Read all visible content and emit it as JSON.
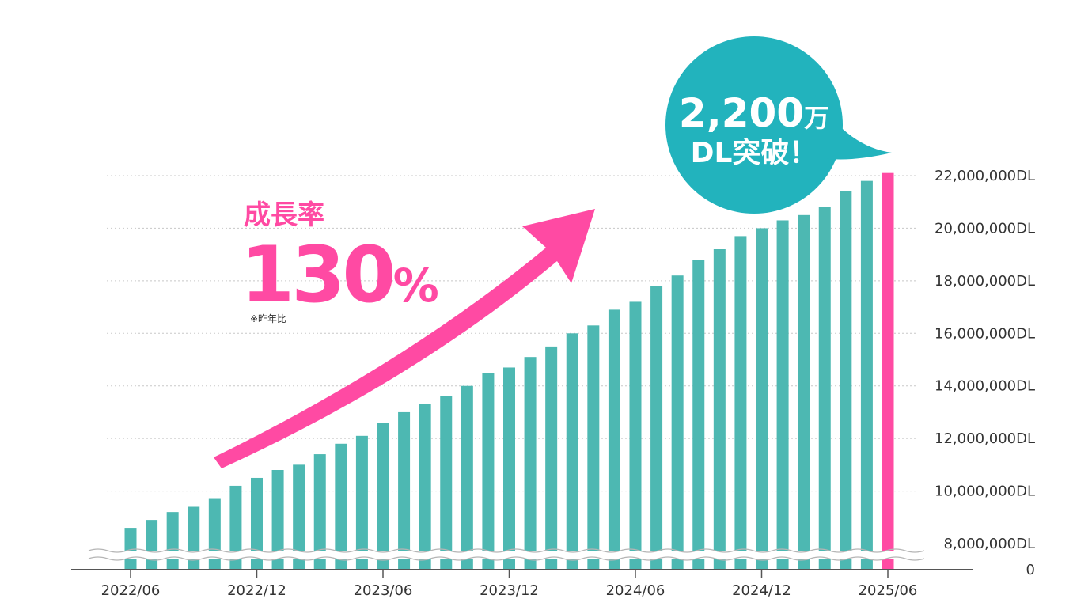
{
  "colors": {
    "bar": "#4db8b2",
    "highlight_bar": "#ff4aa3",
    "accent": "#ff4aa3",
    "bubble": "#22b3bd",
    "grid": "#c8c8c8",
    "axis": "#555555"
  },
  "growth": {
    "label": "成長率",
    "value": "130",
    "unit": "%",
    "note": "※昨年比"
  },
  "bubble": {
    "line1_number": "2,200",
    "line1_unit": "万",
    "line2": "DL突破！"
  },
  "chart_data": {
    "type": "bar",
    "x_tick_labels": [
      "2022/06",
      "2022/12",
      "2023/06",
      "2023/12",
      "2024/06",
      "2024/12",
      "2025/06"
    ],
    "y_tick_labels": [
      "0",
      "8,000,000DL",
      "10,000,000DL",
      "12,000,000DL",
      "14,000,000DL",
      "16,000,000DL",
      "18,000,000DL",
      "20,000,000DL",
      "22,000,000DL"
    ],
    "ylim": [
      8000000,
      22000000
    ],
    "axis_break": true,
    "grid": true,
    "series": [
      {
        "values": [
          8600000,
          8900000,
          9200000,
          9400000,
          9700000,
          10200000,
          10500000,
          10800000,
          11000000,
          11400000,
          11800000,
          12100000,
          12600000,
          13000000,
          13300000,
          13600000,
          14000000,
          14500000,
          14700000,
          15100000,
          15500000,
          16000000,
          16300000,
          16900000,
          17200000,
          17800000,
          18200000,
          18800000,
          19200000,
          19700000,
          20000000,
          20300000,
          20500000,
          20800000,
          21400000,
          21800000,
          22100000
        ],
        "highlight_last": true
      }
    ]
  }
}
